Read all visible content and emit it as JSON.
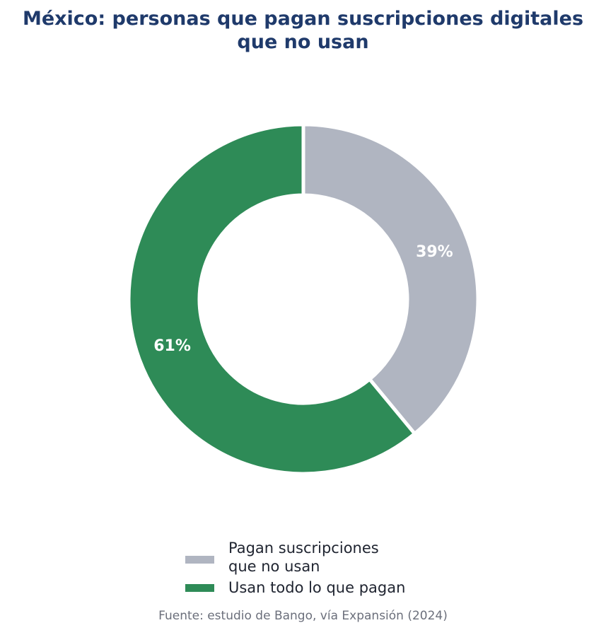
{
  "chart_data": {
    "type": "pie",
    "donut": true,
    "title_lines": [
      "México: personas que pagan suscripciones digitales",
      "que no usan"
    ],
    "slices": [
      {
        "label_lines": [
          "Pagan suscripciones",
          "que no usan"
        ],
        "value": 39,
        "value_label": "39%",
        "color": "#b0b5c1"
      },
      {
        "label_lines": [
          "Usan todo lo que pagan"
        ],
        "value": 61,
        "value_label": "61%",
        "color": "#2e8b57"
      }
    ],
    "start": "top",
    "direction": "clockwise",
    "legend_position": "bottom-center"
  },
  "source_note": "Fuente: estudio de Bango, vía Expansión (2024)"
}
